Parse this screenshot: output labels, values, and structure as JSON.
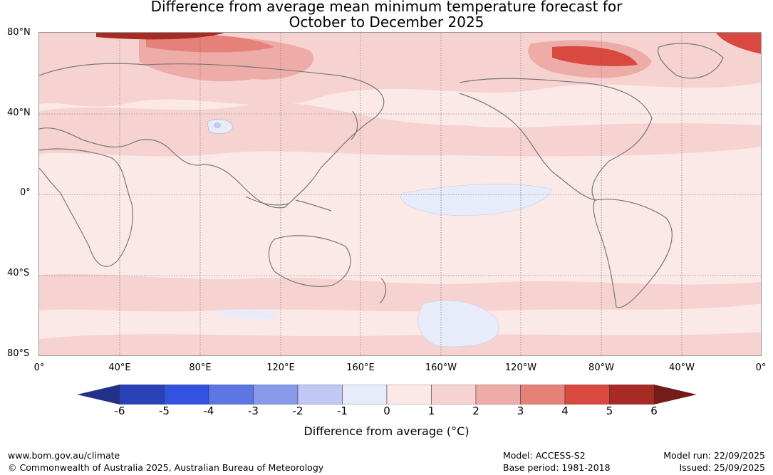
{
  "title": {
    "line1": "Difference from average mean minimum temperature forecast for",
    "line2": "October to December 2025"
  },
  "map": {
    "lat_labels": [
      "80°N",
      "40°N",
      "0°",
      "40°S",
      "80°S"
    ],
    "lon_labels": [
      "0°",
      "40°E",
      "80°E",
      "120°E",
      "160°E",
      "160°W",
      "120°W",
      "80°W",
      "40°W",
      "0°"
    ]
  },
  "colorbar": {
    "ticks": [
      "-6",
      "-5",
      "-4",
      "-3",
      "-2",
      "-1",
      "0",
      "1",
      "2",
      "3",
      "4",
      "5",
      "6"
    ],
    "colors": [
      "#223088",
      "#2a42b8",
      "#3352e0",
      "#5c77e4",
      "#8899ec",
      "#c0c8f4",
      "#e8ecfa",
      "#fbe9e7",
      "#f6d3d1",
      "#eeaca8",
      "#e6817a",
      "#d9493f",
      "#a72b24",
      "#731c18"
    ],
    "label": "Difference from average (°C)"
  },
  "footer": {
    "website": "www.bom.gov.au/climate",
    "copyright": "© Commonwealth of Australia 2025, Australian Bureau of Meteorology",
    "model": "Model: ACCESS-S2",
    "base_period": "Base period: 1981-2018",
    "model_run": "Model run: 22/09/2025",
    "issued": "Issued: 25/09/2025"
  }
}
